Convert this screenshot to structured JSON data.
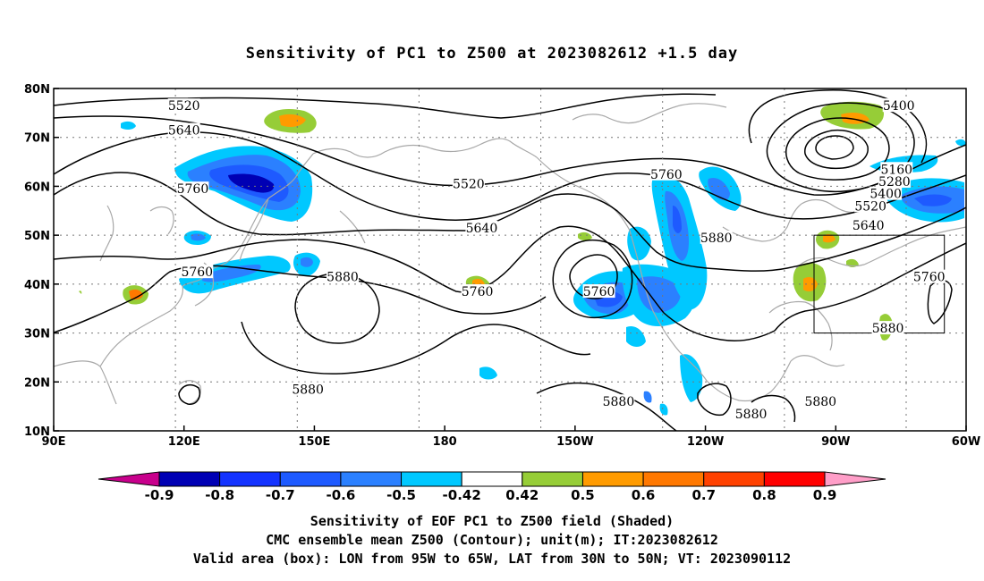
{
  "title": "Sensitivity of PC1 to Z500 at 2023082612 +1.5 day",
  "map": {
    "lon_range": [
      90,
      300
    ],
    "lat_range": [
      10,
      80
    ],
    "lat_ticks": [
      {
        "lat": 80,
        "label": "80N"
      },
      {
        "lat": 70,
        "label": "70N"
      },
      {
        "lat": 60,
        "label": "60N"
      },
      {
        "lat": 50,
        "label": "50N"
      },
      {
        "lat": 40,
        "label": "40N"
      },
      {
        "lat": 30,
        "label": "30N"
      },
      {
        "lat": 20,
        "label": "20N"
      },
      {
        "lat": 10,
        "label": "10N"
      }
    ],
    "lon_ticks": [
      {
        "lon": 90,
        "label": "90E"
      },
      {
        "lon": 120,
        "label": "120E"
      },
      {
        "lon": 150,
        "label": "150E"
      },
      {
        "lon": 180,
        "label": "180"
      },
      {
        "lon": 210,
        "label": "150W"
      },
      {
        "lon": 240,
        "label": "120W"
      },
      {
        "lon": 270,
        "label": "90W"
      },
      {
        "lon": 300,
        "label": "60W"
      }
    ],
    "box": {
      "lon_west": 265,
      "lon_east": 295,
      "lat_south": 30,
      "lat_north": 50
    },
    "contour_labels": [
      {
        "text": "5520",
        "lon": 120,
        "lat": 76.5
      },
      {
        "text": "5640",
        "lon": 120,
        "lat": 71.5
      },
      {
        "text": "5760",
        "lon": 122,
        "lat": 59.5
      },
      {
        "text": "5520",
        "lon": 185.5,
        "lat": 60.5
      },
      {
        "text": "5640",
        "lon": 188.5,
        "lat": 51.5
      },
      {
        "text": "5760",
        "lon": 123,
        "lat": 42.5
      },
      {
        "text": "5880",
        "lon": 156.5,
        "lat": 41.5
      },
      {
        "text": "5760",
        "lon": 187.5,
        "lat": 38.5
      },
      {
        "text": "5760",
        "lon": 215.5,
        "lat": 38.5
      },
      {
        "text": "5760",
        "lon": 231,
        "lat": 62.5
      },
      {
        "text": "5880",
        "lon": 242.5,
        "lat": 49.5
      },
      {
        "text": "5400",
        "lon": 284.5,
        "lat": 76.5
      },
      {
        "text": "5160",
        "lon": 284,
        "lat": 63.5
      },
      {
        "text": "5280",
        "lon": 283.5,
        "lat": 61
      },
      {
        "text": "5400",
        "lon": 281.5,
        "lat": 58.5
      },
      {
        "text": "5520",
        "lon": 278,
        "lat": 56
      },
      {
        "text": "5640",
        "lon": 277.5,
        "lat": 52
      },
      {
        "text": "5760",
        "lon": 291.5,
        "lat": 41.5
      },
      {
        "text": "5880",
        "lon": 282,
        "lat": 31
      },
      {
        "text": "5880",
        "lon": 148.5,
        "lat": 18.5
      },
      {
        "text": "5880",
        "lon": 220,
        "lat": 16
      },
      {
        "text": "5880",
        "lon": 250.5,
        "lat": 13.5
      },
      {
        "text": "5880",
        "lon": 266.5,
        "lat": 16
      }
    ]
  },
  "colorbar": {
    "labels": [
      "-0.9",
      "-0.8",
      "-0.7",
      "-0.6",
      "-0.5",
      "-0.42",
      "0.42",
      "0.5",
      "0.6",
      "0.7",
      "0.8",
      "0.9"
    ],
    "colors": [
      "#0000b4",
      "#1433ff",
      "#1e5aff",
      "#2b80ff",
      "#00c8ff",
      "#ffffff",
      "#96cd37",
      "#ff9b00",
      "#ff7800",
      "#ff4100",
      "#ff0000"
    ],
    "low_extend_color": "#c8008c",
    "high_extend_color": "#ff9ec8"
  },
  "caption": [
    "Sensitivity of EOF PC1 to Z500 field (Shaded)",
    "CMC ensemble mean Z500 (Contour); unit(m); IT:2023082612",
    "Valid area (box): LON from 95W to 65W, LAT from 30N to 50N; VT: 2023090112"
  ]
}
